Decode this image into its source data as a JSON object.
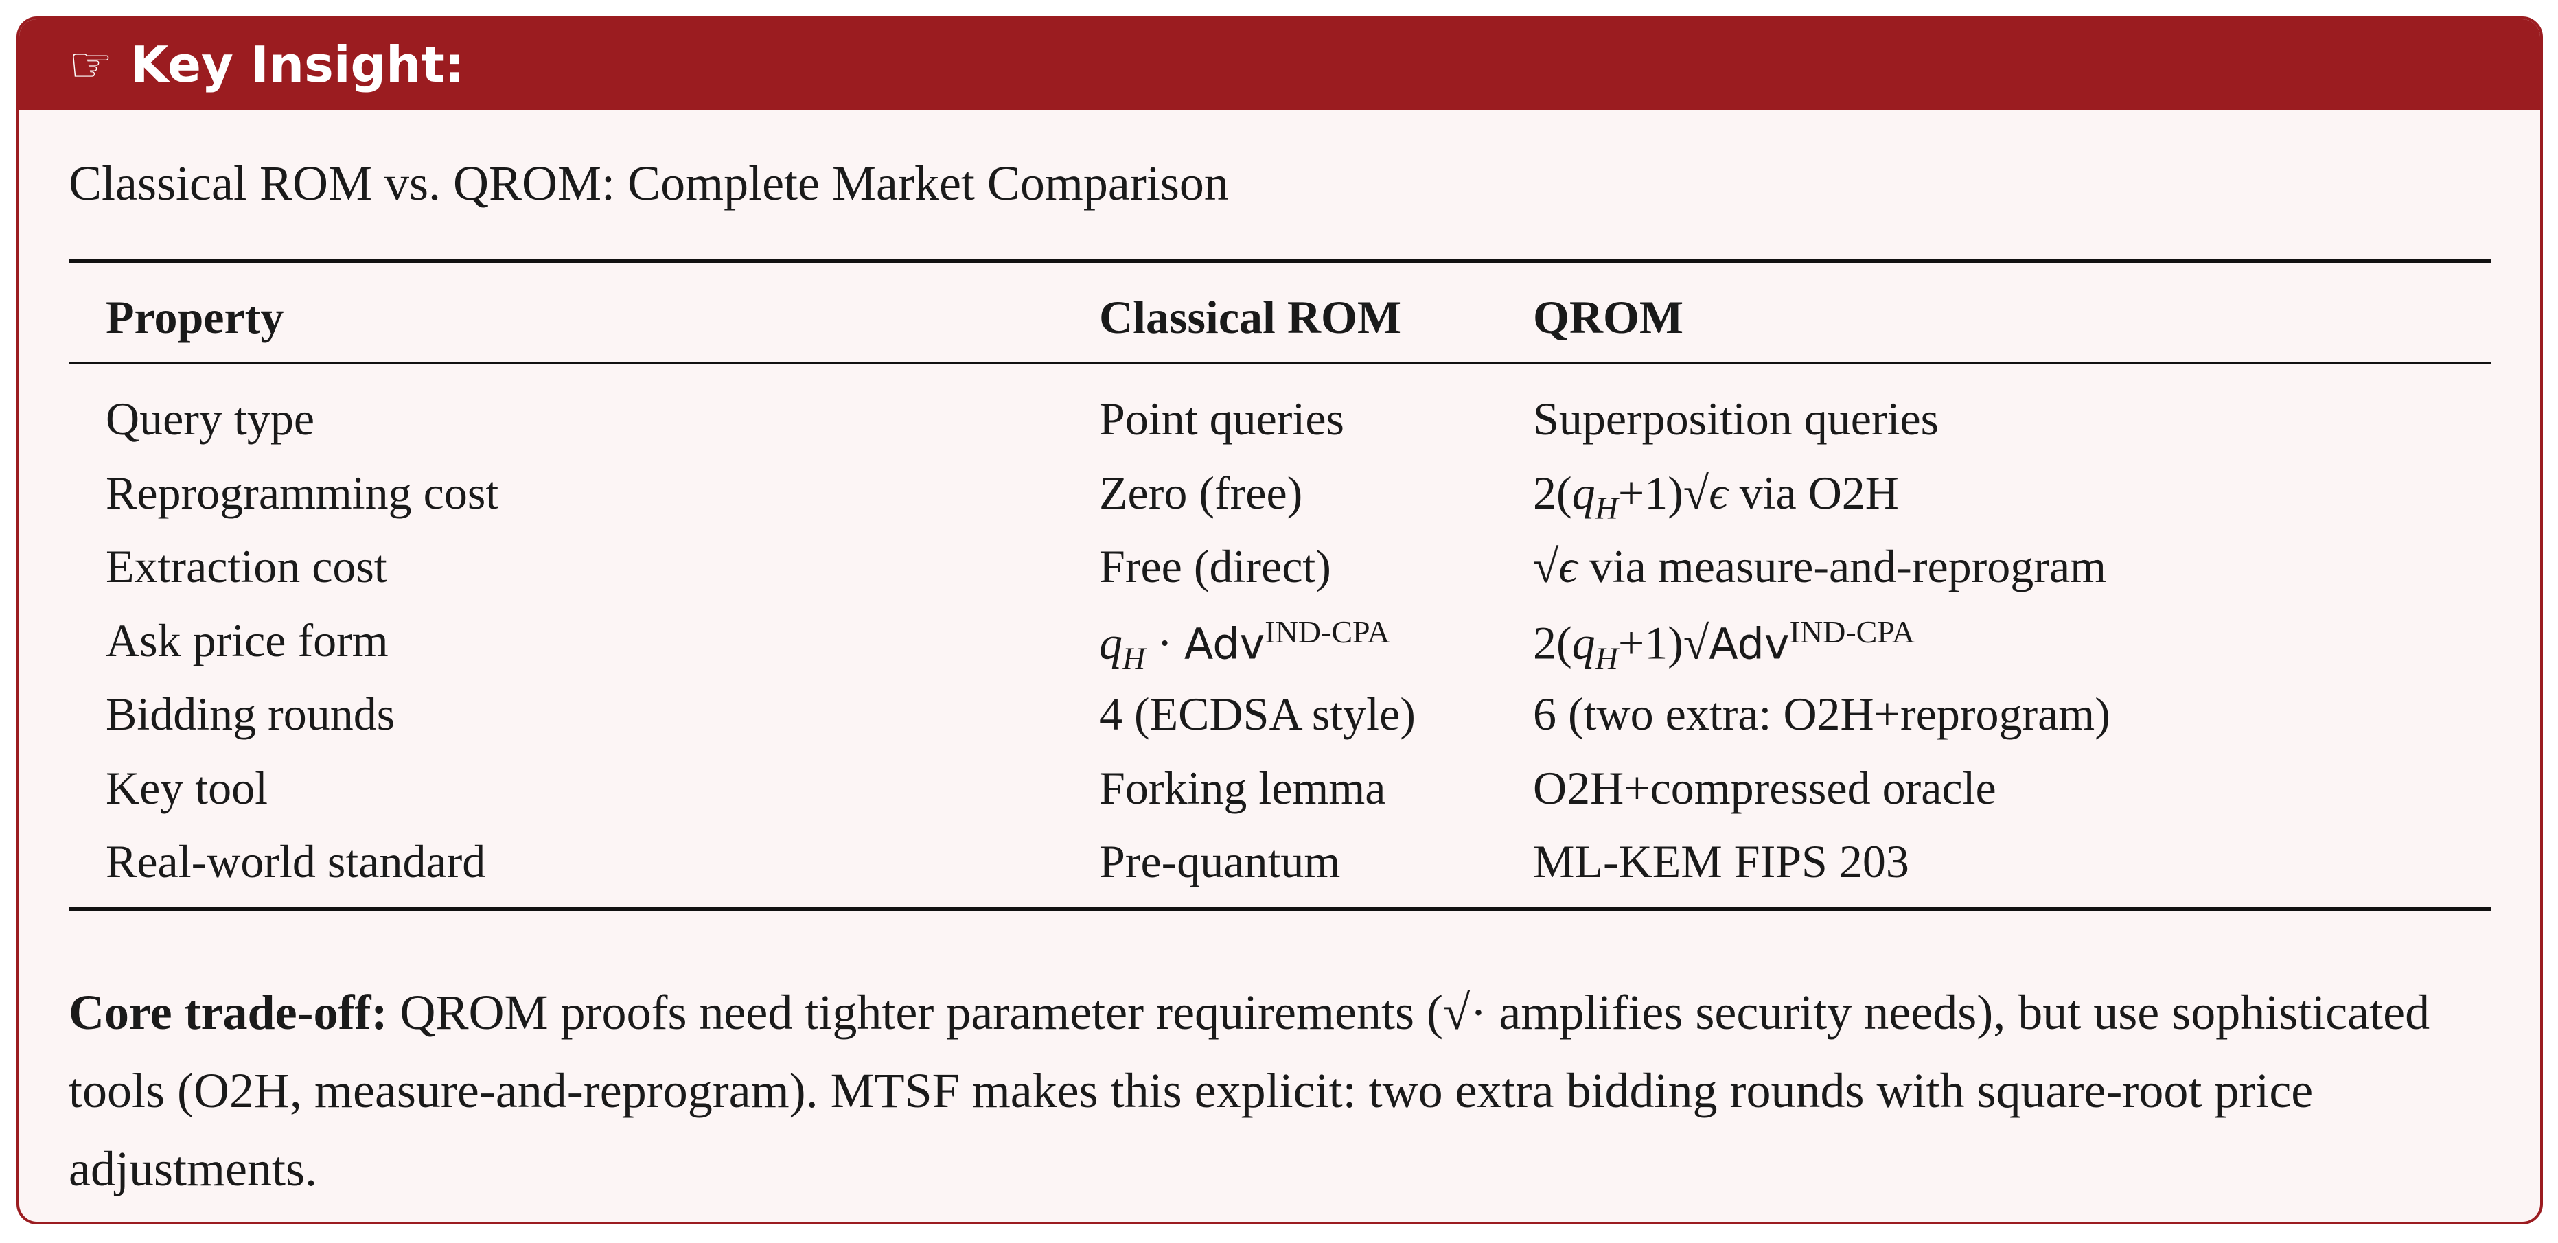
{
  "header": {
    "title": "☞ Key Insight:"
  },
  "subtitle": "Classical ROM vs. QROM: Complete Market Comparison",
  "table": {
    "headers": [
      "Property",
      "Classical ROM",
      "QROM"
    ],
    "rows": [
      [
        "Query type",
        "Point queries",
        "Superposition queries"
      ],
      [
        "Reprogramming cost",
        "Zero (free)",
        [
          "2(",
          {
            "var": "q",
            "sub": "H"
          },
          "+1)√",
          {
            "var": "ϵ"
          },
          " via O2H"
        ]
      ],
      [
        "Extraction cost",
        "Free (direct)",
        [
          "√",
          {
            "var": "ϵ"
          },
          " via measure-and-reprogram"
        ]
      ],
      [
        "Ask price form",
        [
          {
            "var": "q",
            "sub": "H"
          },
          " · ",
          {
            "op": "Adv",
            "sup": "IND-CPA"
          }
        ],
        [
          "2(",
          {
            "var": "q",
            "sub": "H"
          },
          "+1)√",
          {
            "op": "Adv",
            "sup": "IND-CPA"
          }
        ]
      ],
      [
        "Bidding rounds",
        "4 (ECDSA style)",
        "6 (two extra: O2H+reprogram)"
      ],
      [
        "Key tool",
        "Forking lemma",
        "O2H+compressed oracle"
      ],
      [
        "Real-world standard",
        "Pre-quantum",
        "ML-KEM FIPS 203"
      ]
    ]
  },
  "footer": {
    "label": "Core trade-off:",
    "text": "QROM proofs need tighter parameter requirements (√· amplifies security needs), but use sophisticated tools (O2H, measure-and-reprogram). MTSF makes this explicit: two extra bidding rounds with square-root price adjustments."
  }
}
